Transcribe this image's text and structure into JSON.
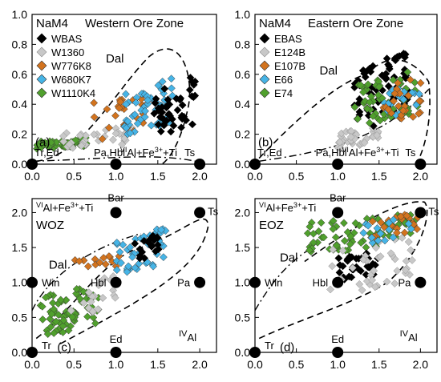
{
  "chart_data": [
    {
      "panel_label": "(a)",
      "type": "scatter",
      "title": "NaM4",
      "subtitle": "Western Ore Zone",
      "xlim": [
        0,
        2.2
      ],
      "ylim": [
        0,
        1.0
      ],
      "xticks": [
        "0.0",
        "0.5",
        "1.0",
        "1.5",
        "2.0"
      ],
      "yticks": [
        "0.0",
        "0.2",
        "0.4",
        "0.6",
        "0.8",
        "1.0"
      ],
      "xtick_values": [
        0,
        0.5,
        1.0,
        1.5,
        2.0
      ],
      "ytick_values": [
        0,
        0.2,
        0.4,
        0.6,
        0.8,
        1.0
      ],
      "legend_position": "top-left",
      "legend": [
        {
          "name": "WBAS",
          "color": "#000000"
        },
        {
          "name": "W1360",
          "color": "#c8c8c8"
        },
        {
          "name": "W776K8",
          "color": "#d2731e"
        },
        {
          "name": "W680K7",
          "color": "#46b4e6"
        },
        {
          "name": "W1110K4",
          "color": "#50a02d"
        }
      ],
      "xaxis_label": "VIAl+Fe3++Ti",
      "endmembers": [
        {
          "name": "Tr,Ed",
          "x": 0,
          "y": 0
        },
        {
          "name": "Pa,Hbl",
          "x": 1.0,
          "y": 0
        },
        {
          "name": "Ts",
          "x": 2.0,
          "y": 0
        }
      ],
      "field_label": "Dal",
      "clusters": [
        {
          "series": "W1110K4",
          "x_range": [
            0.05,
            0.65
          ],
          "y_range": [
            0.1,
            0.18
          ],
          "n": 55
        },
        {
          "series": "W1360",
          "x_range": [
            0.35,
            1.2
          ],
          "y_range": [
            0.1,
            0.25
          ],
          "n": 35
        },
        {
          "series": "W776K8",
          "x_range": [
            0.7,
            1.4
          ],
          "y_range": [
            0.15,
            0.5
          ],
          "n": 25
        },
        {
          "series": "W680K7",
          "x_range": [
            1.1,
            1.7
          ],
          "y_range": [
            0.18,
            0.58
          ],
          "n": 55
        },
        {
          "series": "WBAS",
          "x_range": [
            1.45,
            1.95
          ],
          "y_range": [
            0.15,
            0.6
          ],
          "n": 45
        }
      ]
    },
    {
      "panel_label": "(b)",
      "type": "scatter",
      "title": "NaM4",
      "subtitle": "Eastern Ore Zone",
      "xlim": [
        0,
        2.2
      ],
      "ylim": [
        0,
        1.0
      ],
      "xticks": [
        "0.0",
        "0.5",
        "1.0",
        "1.5",
        "2.0"
      ],
      "yticks": [
        "0.0",
        "0.2",
        "0.4",
        "0.6",
        "0.8",
        "1.0"
      ],
      "xtick_values": [
        0,
        0.5,
        1.0,
        1.5,
        2.0
      ],
      "ytick_values": [
        0,
        0.2,
        0.4,
        0.6,
        0.8,
        1.0
      ],
      "legend_position": "top-left",
      "legend": [
        {
          "name": "EBAS",
          "color": "#000000"
        },
        {
          "name": "E124B",
          "color": "#c8c8c8"
        },
        {
          "name": "E107B",
          "color": "#d2731e"
        },
        {
          "name": "E66",
          "color": "#46b4e6"
        },
        {
          "name": "E74",
          "color": "#50a02d"
        }
      ],
      "xaxis_label": "VIAl+Fe3++Ti",
      "endmembers": [
        {
          "name": "Tr,Ed",
          "x": 0,
          "y": 0
        },
        {
          "name": "Pa,Hbl",
          "x": 1.0,
          "y": 0
        },
        {
          "name": "Ts",
          "x": 2.0,
          "y": 0
        }
      ],
      "field_label": "Dal",
      "clusters": [
        {
          "series": "E124B",
          "x_range": [
            1.0,
            1.5
          ],
          "y_range": [
            0.1,
            0.25
          ],
          "n": 35
        },
        {
          "series": "EBAS",
          "x_range": [
            1.2,
            1.85
          ],
          "y_range": [
            0.2,
            0.78
          ],
          "n": 70
        },
        {
          "series": "E74",
          "x_range": [
            1.2,
            2.0
          ],
          "y_range": [
            0.25,
            0.65
          ],
          "n": 60
        },
        {
          "series": "E66",
          "x_range": [
            1.5,
            2.0
          ],
          "y_range": [
            0.3,
            0.55
          ],
          "n": 20
        },
        {
          "series": "E107B",
          "x_range": [
            1.55,
            2.05
          ],
          "y_range": [
            0.25,
            0.6
          ],
          "n": 25
        }
      ]
    },
    {
      "panel_label": "(c)",
      "type": "scatter",
      "title": "WOZ",
      "xlim": [
        0,
        2.2
      ],
      "ylim": [
        0,
        2.2
      ],
      "xticks": [
        "0.0",
        "0.5",
        "1.0",
        "1.5",
        "2.0"
      ],
      "yticks": [
        "0.0",
        "0.5",
        "1.0",
        "1.5",
        "2.0"
      ],
      "xtick_values": [
        0,
        0.5,
        1.0,
        1.5,
        2.0
      ],
      "ytick_values": [
        0,
        0.5,
        1.0,
        1.5,
        2.0
      ],
      "yaxis_label": "VIAl+Fe3++Ti",
      "xaxis_label": "IVAl",
      "endmembers": [
        {
          "name": "Tr",
          "x": 0,
          "y": 0
        },
        {
          "name": "Ed",
          "x": 1.0,
          "y": 0
        },
        {
          "name": "Win",
          "x": 0,
          "y": 1.0
        },
        {
          "name": "Hbl",
          "x": 1.0,
          "y": 1.0
        },
        {
          "name": "Pa",
          "x": 2.0,
          "y": 1.0
        },
        {
          "name": "Bar",
          "x": 1.0,
          "y": 2.0
        },
        {
          "name": "Ts",
          "x": 2.0,
          "y": 2.0
        }
      ],
      "field_label": "Dal",
      "clusters": [
        {
          "series": "W1110K4",
          "x_range": [
            0.1,
            0.8
          ],
          "y_range": [
            0.2,
            1.0
          ],
          "n": 70
        },
        {
          "series": "W1360",
          "x_range": [
            0.45,
            1.0
          ],
          "y_range": [
            0.5,
            1.1
          ],
          "n": 20
        },
        {
          "series": "W776K8",
          "x_range": [
            0.5,
            1.1
          ],
          "y_range": [
            1.1,
            1.4
          ],
          "n": 15
        },
        {
          "series": "W680K7",
          "x_range": [
            1.0,
            1.6
          ],
          "y_range": [
            1.1,
            1.8
          ],
          "n": 45
        },
        {
          "series": "WBAS",
          "x_range": [
            1.2,
            1.55
          ],
          "y_range": [
            1.3,
            1.7
          ],
          "n": 20
        }
      ]
    },
    {
      "panel_label": "(d)",
      "type": "scatter",
      "title": "EOZ",
      "xlim": [
        0,
        2.2
      ],
      "ylim": [
        0,
        2.2
      ],
      "xticks": [
        "0.0",
        "0.5",
        "1.0",
        "1.5",
        "2.0"
      ],
      "yticks": [
        "0.0",
        "0.5",
        "1.0",
        "1.5",
        "2.0"
      ],
      "xtick_values": [
        0,
        0.5,
        1.0,
        1.5,
        2.0
      ],
      "ytick_values": [
        0,
        0.5,
        1.0,
        1.5,
        2.0
      ],
      "yaxis_label": "VIAl+Fe3++Ti",
      "xaxis_label": "IVAl",
      "endmembers": [
        {
          "name": "Tr",
          "x": 0,
          "y": 0
        },
        {
          "name": "Ed",
          "x": 1.0,
          "y": 0
        },
        {
          "name": "Win",
          "x": 0,
          "y": 1.0
        },
        {
          "name": "Hbl",
          "x": 1.0,
          "y": 1.0
        },
        {
          "name": "Pa",
          "x": 2.0,
          "y": 1.0
        },
        {
          "name": "Bar",
          "x": 1.0,
          "y": 2.0
        },
        {
          "name": "Ts",
          "x": 2.0,
          "y": 2.0
        }
      ],
      "field_label": "Dal",
      "clusters": [
        {
          "series": "E74",
          "x_range": [
            0.6,
            1.95
          ],
          "y_range": [
            1.4,
            2.0
          ],
          "n": 70
        },
        {
          "series": "EBAS",
          "x_range": [
            1.0,
            1.5
          ],
          "y_range": [
            1.0,
            1.5
          ],
          "n": 35
        },
        {
          "series": "E124B",
          "x_range": [
            0.9,
            1.9
          ],
          "y_range": [
            0.8,
            1.7
          ],
          "n": 40
        },
        {
          "series": "E107B",
          "x_range": [
            1.4,
            2.0
          ],
          "y_range": [
            1.6,
            2.0
          ],
          "n": 25
        },
        {
          "series": "E66",
          "x_range": [
            1.3,
            1.9
          ],
          "y_range": [
            1.5,
            1.95
          ],
          "n": 15
        }
      ]
    }
  ]
}
